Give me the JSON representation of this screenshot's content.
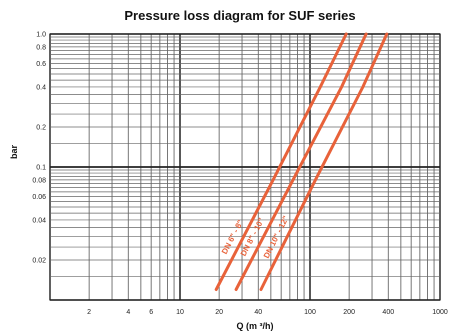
{
  "chart_data": {
    "type": "line",
    "title": "Pressure loss diagram for SUF series",
    "xlabel": "Q (m ³/h)",
    "ylabel": "bar",
    "x_scale": "log",
    "y_scale": "log",
    "xlim": [
      1,
      1000
    ],
    "ylim": [
      0.01,
      1
    ],
    "x_ticks": [
      {
        "value": 2,
        "label": "2"
      },
      {
        "value": 4,
        "label": "4"
      },
      {
        "value": 6,
        "label": "6"
      },
      {
        "value": 10,
        "label": "10"
      },
      {
        "value": 20,
        "label": "20"
      },
      {
        "value": 40,
        "label": "40"
      },
      {
        "value": 100,
        "label": "100"
      },
      {
        "value": 200,
        "label": "200"
      },
      {
        "value": 400,
        "label": "400"
      },
      {
        "value": 1000,
        "label": "1000"
      }
    ],
    "y_ticks": [
      {
        "value": 1,
        "label": "1.0"
      },
      {
        "value": 0.8,
        "label": "0.8"
      },
      {
        "value": 0.6,
        "label": "0.6"
      },
      {
        "value": 0.4,
        "label": "0.4"
      },
      {
        "value": 0.2,
        "label": "0.2"
      },
      {
        "value": 0.1,
        "label": "0.1"
      },
      {
        "value": 0.08,
        "label": "0.08"
      },
      {
        "value": 0.06,
        "label": "0.06"
      },
      {
        "value": 0.04,
        "label": "0.04"
      },
      {
        "value": 0.02,
        "label": "0.02"
      }
    ],
    "grid": true,
    "series": [
      {
        "name": "DN 6\" - 8\"",
        "points": [
          [
            19,
            0.012
          ],
          [
            52,
            0.08
          ],
          [
            120,
            0.4
          ],
          [
            190,
            1.0
          ]
        ]
      },
      {
        "name": "DN 8\" - 10\"",
        "points": [
          [
            27,
            0.012
          ],
          [
            74,
            0.08
          ],
          [
            175,
            0.4
          ],
          [
            270,
            1.0
          ]
        ]
      },
      {
        "name": "DN 10\" - 12\"",
        "points": [
          [
            42,
            0.012
          ],
          [
            110,
            0.08
          ],
          [
            255,
            0.4
          ],
          [
            390,
            1.0
          ]
        ]
      }
    ],
    "line_color": "#e8623a"
  }
}
